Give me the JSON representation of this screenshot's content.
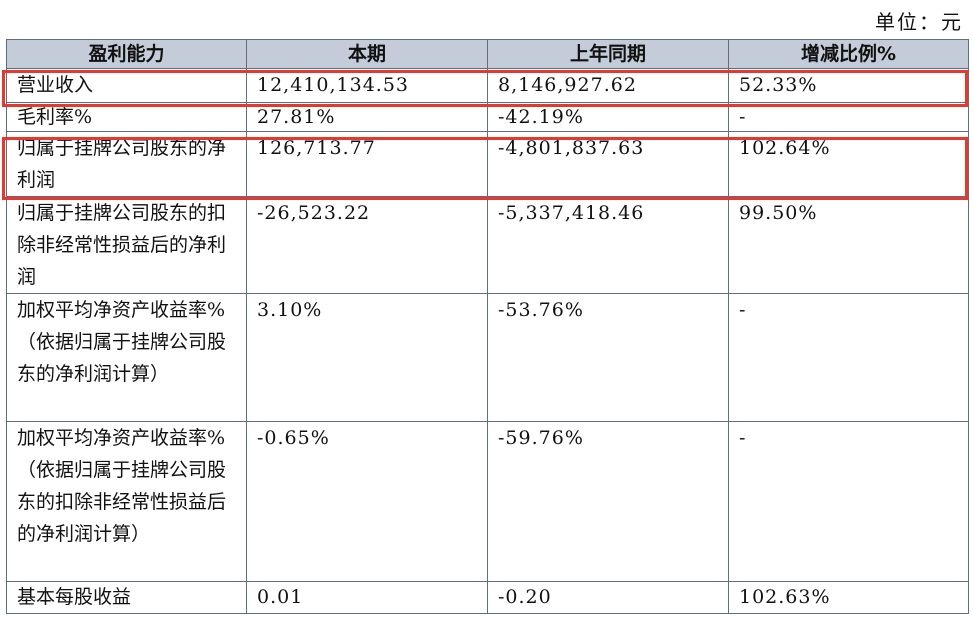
{
  "unit_label": "单位：元",
  "headers": [
    "盈利能力",
    "本期",
    "上年同期",
    "增减比例%"
  ],
  "rows": [
    {
      "label": "营业收入",
      "current": "12,410,134.53",
      "prior": "8,146,927.62",
      "change": "52.33%"
    },
    {
      "label": "毛利率%",
      "current": "27.81%",
      "prior": "-42.19%",
      "change": "-"
    },
    {
      "label": "归属于挂牌公司股东的净利润",
      "current": "126,713.77",
      "prior": "-4,801,837.63",
      "change": "102.64%"
    },
    {
      "label": "归属于挂牌公司股东的扣除非经常性损益后的净利润",
      "current": "-26,523.22",
      "prior": "-5,337,418.46",
      "change": "99.50%"
    },
    {
      "label": "加权平均净资产收益率%（依据归属于挂牌公司股东的净利润计算）",
      "current": "3.10%",
      "prior": "-53.76%",
      "change": "-"
    },
    {
      "label": "加权平均净资产收益率%（依据归属于挂牌公司股东的扣除非经常性损益后的净利润计算）",
      "current": "-0.65%",
      "prior": "-59.76%",
      "change": "-"
    },
    {
      "label": "基本每股收益",
      "current": "0.01",
      "prior": "-0.20",
      "change": "102.63%"
    }
  ],
  "highlight_color": "#e8372c"
}
